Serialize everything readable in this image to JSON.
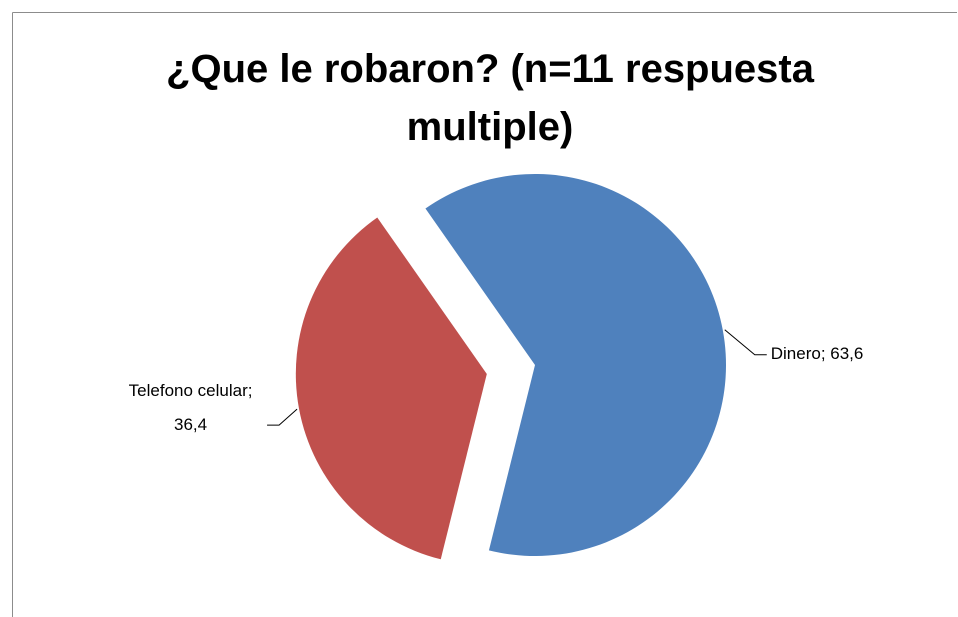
{
  "chart_data": {
    "type": "pie",
    "title": "¿Que le robaron? (n=11 respuesta multiple)",
    "values": [
      63.6,
      36.4
    ],
    "value_labels": [
      "Dinero; 63,6",
      "Telefono celular; 36,4"
    ],
    "colors": [
      "#4f81bd",
      "#c0504d"
    ],
    "explode": [
      false,
      true
    ]
  }
}
